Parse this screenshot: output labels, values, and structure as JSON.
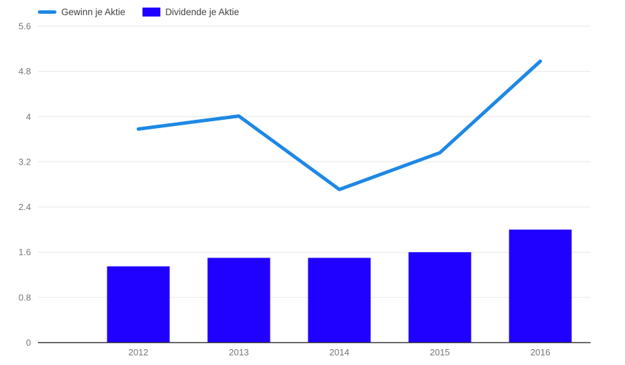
{
  "chart_data": {
    "type": "combo",
    "title": "",
    "categories": [
      "2012",
      "2013",
      "2014",
      "2015",
      "2016"
    ],
    "series": [
      {
        "name": "Gewinn je Aktie",
        "type": "line",
        "color": "#1e88e5",
        "values": [
          3.78,
          4.01,
          2.71,
          3.36,
          4.98
        ]
      },
      {
        "name": "Dividende je Aktie",
        "type": "bar",
        "color": "#2000ff",
        "values": [
          1.35,
          1.5,
          1.5,
          1.6,
          2.0
        ]
      }
    ],
    "xlabel": "",
    "ylabel": "",
    "ylim": [
      0,
      5.6
    ],
    "yticks": [
      0,
      0.8,
      1.6,
      2.4,
      3.2,
      4,
      4.8,
      5.6
    ],
    "ytick_labels": [
      "0",
      "0.8",
      "1.6",
      "2.4",
      "3.2",
      "4",
      "4.8",
      "5.6"
    ],
    "grid": true,
    "legend_position": "top-left",
    "colors": {
      "gridline": "#e6e6e6",
      "zero_axis_line": "#333333",
      "tick_text": "#757575",
      "legend_text": "#424242",
      "background": "#ffffff"
    }
  },
  "legend": {
    "items": [
      {
        "label": "Gewinn je Aktie",
        "swatch": "line"
      },
      {
        "label": "Dividende je Aktie",
        "swatch": "bar"
      }
    ]
  }
}
